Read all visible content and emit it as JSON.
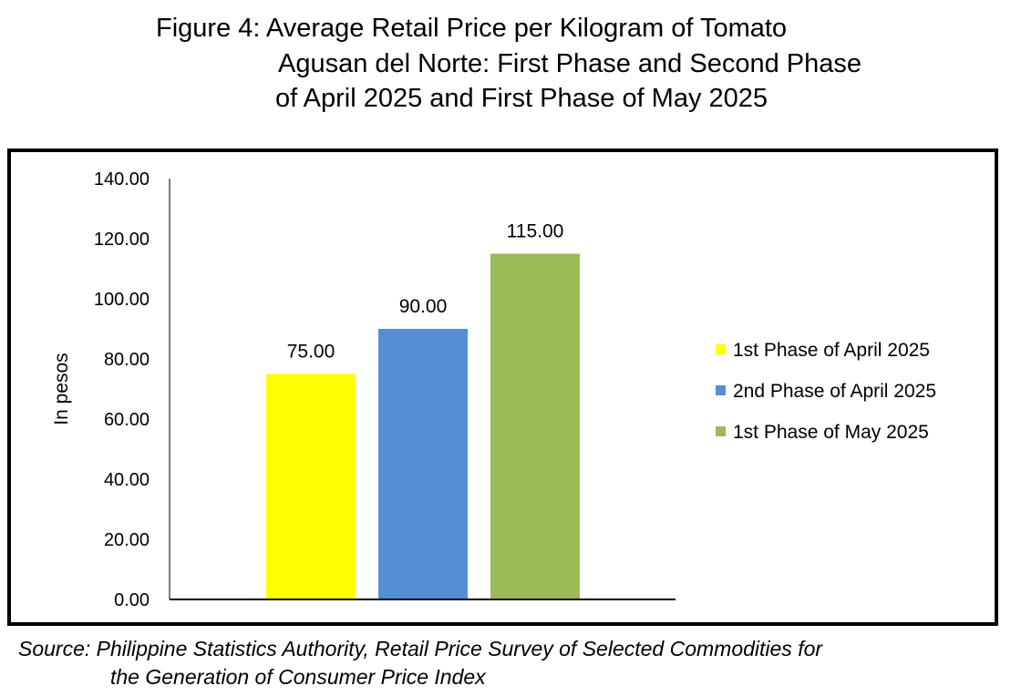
{
  "title": {
    "line1": "Figure 4: Average Retail Price per Kilogram of Tomato",
    "line2": "Agusan del Norte: First Phase and Second Phase",
    "line3": "of April 2025 and First Phase of May 2025"
  },
  "source": {
    "line1": "Source: Philippine Statistics Authority, Retail Price Survey of Selected Commodities for",
    "line2": "the Generation of Consumer Price Index"
  },
  "chart_data": {
    "type": "bar",
    "title": "Figure 4: Average Retail Price per Kilogram of Tomato Agusan del Norte: First Phase and Second Phase of April 2025 and First Phase of May 2025",
    "ylabel": "In pesos",
    "xlabel": "",
    "ylim": [
      0,
      140
    ],
    "yticks": [
      "0.00",
      "20.00",
      "40.00",
      "60.00",
      "80.00",
      "100.00",
      "120.00",
      "140.00"
    ],
    "grid": false,
    "legend_position": "right",
    "series": [
      {
        "name": "1st Phase of April 2025",
        "value": 75.0,
        "label": "75.00",
        "color": "#FFFF00"
      },
      {
        "name": "2nd Phase of April 2025",
        "value": 90.0,
        "label": "90.00",
        "color": "#558ED5"
      },
      {
        "name": "1st Phase of May 2025",
        "value": 115.0,
        "label": "115.00",
        "color": "#9BBB59"
      }
    ]
  }
}
